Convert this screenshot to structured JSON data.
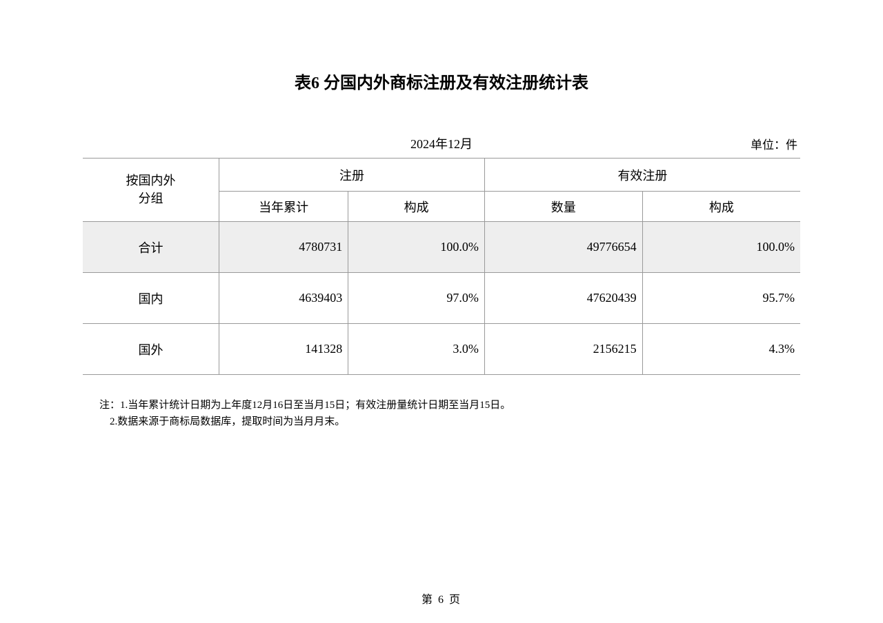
{
  "title": "表6 分国内外商标注册及有效注册统计表",
  "date": "2024年12月",
  "unit": "单位：件",
  "table": {
    "row_header_line1": "按国内外",
    "row_header_line2": "分组",
    "header_group1": "注册",
    "header_group2": "有效注册",
    "sub_header_1": "当年累计",
    "sub_header_2": "构成",
    "sub_header_3": "数量",
    "sub_header_4": "构成",
    "rows": {
      "total": {
        "label": "合计",
        "reg_cum": "4780731",
        "reg_comp": "100.0%",
        "valid_qty": "49776654",
        "valid_comp": "100.0%"
      },
      "domestic": {
        "label": "国内",
        "reg_cum": "4639403",
        "reg_comp": "97.0%",
        "valid_qty": "47620439",
        "valid_comp": "95.7%"
      },
      "foreign": {
        "label": "国外",
        "reg_cum": "141328",
        "reg_comp": "3.0%",
        "valid_qty": "2156215",
        "valid_comp": "4.3%"
      }
    }
  },
  "notes": {
    "line1": "注：1.当年累计统计日期为上年度12月16日至当月15日；有效注册量统计日期至当月15日。",
    "line2": "    2.数据来源于商标局数据库，提取时间为当月月末。"
  },
  "footer": "第 6 页",
  "colors": {
    "background": "#ffffff",
    "text": "#000000",
    "border": "#999999",
    "shaded_row": "#eeeeee"
  }
}
